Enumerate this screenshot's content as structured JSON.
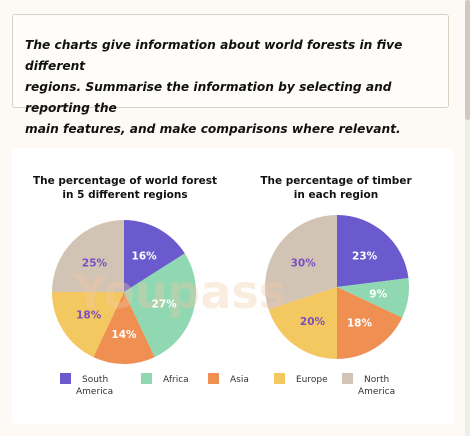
{
  "task": {
    "lines": [
      "The charts give information about world forests in five different",
      "regions. Summarise the information by selecting and reporting the",
      "main features, and make comparisons where relevant."
    ]
  },
  "watermark": "Youpass",
  "chart_data": [
    {
      "type": "pie",
      "title_lines": [
        "The percentage of world forest",
        "in 5 different regions"
      ],
      "slices": [
        {
          "name": "South America",
          "value": 16,
          "label": "16%",
          "color": "#6a5acd",
          "label_color": "#ffffff"
        },
        {
          "name": "Africa",
          "value": 27,
          "label": "27%",
          "color": "#8fd8b2",
          "label_color": "#ffffff"
        },
        {
          "name": "Asia",
          "value": 14,
          "label": "14%",
          "color": "#ef8f52",
          "label_color": "#ffffff"
        },
        {
          "name": "Europe",
          "value": 18,
          "label": "18%",
          "color": "#f4c860",
          "label_color": "#7a4fc0"
        },
        {
          "name": "North America",
          "value": 25,
          "label": "25%",
          "color": "#d2c4b4",
          "label_color": "#7a4fc0"
        }
      ]
    },
    {
      "type": "pie",
      "title_lines": [
        "The percentage of timber",
        "in each region"
      ],
      "slices": [
        {
          "name": "South America",
          "value": 23,
          "label": "23%",
          "color": "#6a5acd",
          "label_color": "#ffffff"
        },
        {
          "name": "Africa",
          "value": 9,
          "label": "9%",
          "color": "#8fd8b2",
          "label_color": "#ffffff"
        },
        {
          "name": "Asia",
          "value": 18,
          "label": "18%",
          "color": "#ef8f52",
          "label_color": "#ffffff"
        },
        {
          "name": "Europe",
          "value": 20,
          "label": "20%",
          "color": "#f4c860",
          "label_color": "#7a4fc0"
        },
        {
          "name": "North America",
          "value": 30,
          "label": "30%",
          "color": "#d2c4b4",
          "label_color": "#7a4fc0"
        }
      ]
    }
  ],
  "legend": {
    "placement": "bottom",
    "items": [
      {
        "lines": [
          "South",
          "America"
        ],
        "color": "#6a5acd"
      },
      {
        "lines": [
          "Africa"
        ],
        "color": "#8fd8b2"
      },
      {
        "lines": [
          "Asia"
        ],
        "color": "#ef8f52"
      },
      {
        "lines": [
          "Europe"
        ],
        "color": "#f4c860"
      },
      {
        "lines": [
          "North",
          "America"
        ],
        "color": "#d2c4b4"
      }
    ]
  }
}
